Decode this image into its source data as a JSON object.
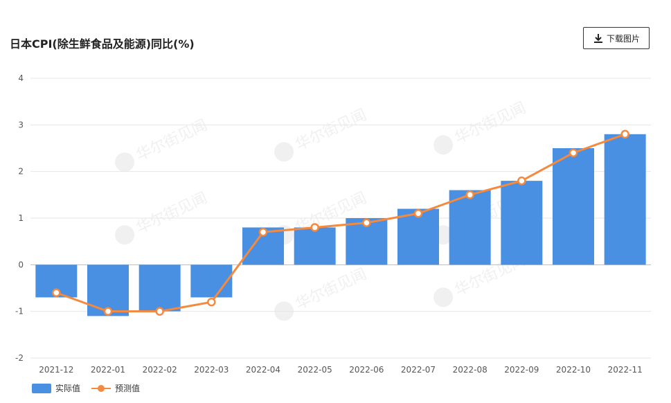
{
  "header": {
    "title": "日本CPI(除生鲜食品及能源)同比(%)",
    "download_label": "下载图片"
  },
  "watermark": {
    "text": "华尔街见闻"
  },
  "colors": {
    "bar": "#4a90e2",
    "line": "#f5893d",
    "grid": "#e6e6e6"
  },
  "chart_data": {
    "type": "bar",
    "title": "日本CPI(除生鲜食品及能源)同比(%)",
    "categories": [
      "2021-12",
      "2022-01",
      "2022-02",
      "2022-03",
      "2022-04",
      "2022-05",
      "2022-06",
      "2022-07",
      "2022-08",
      "2022-09",
      "2022-10",
      "2022-11"
    ],
    "series": [
      {
        "name": "实际值",
        "type": "bar",
        "values": [
          -0.7,
          -1.1,
          -1.0,
          -0.7,
          0.8,
          0.8,
          1.0,
          1.2,
          1.6,
          1.8,
          2.5,
          2.8
        ]
      },
      {
        "name": "预测值",
        "type": "line",
        "values": [
          -0.6,
          -1.0,
          -1.0,
          -0.8,
          0.7,
          0.8,
          0.9,
          1.1,
          1.5,
          1.8,
          2.4,
          2.8
        ]
      }
    ],
    "ylim": [
      -2,
      4
    ],
    "yticks": [
      -2,
      -1,
      0,
      1,
      2,
      3,
      4
    ],
    "grid": true,
    "legend": "bottom-left"
  }
}
